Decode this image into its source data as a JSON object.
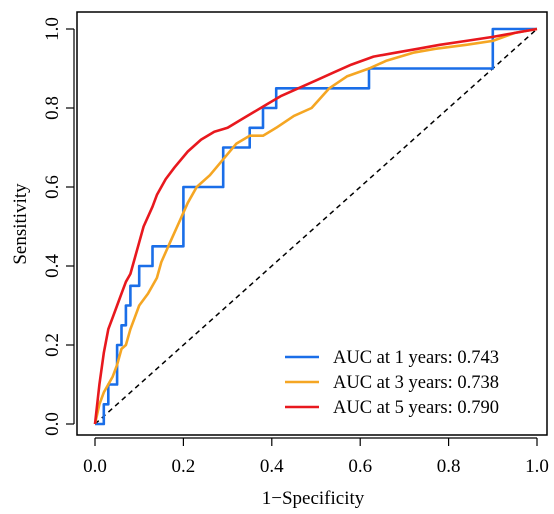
{
  "chart_data": {
    "type": "line",
    "title": "",
    "xlabel": "1−Specificity",
    "ylabel": "Sensitivity",
    "xlim": [
      0,
      1
    ],
    "ylim": [
      0,
      1
    ],
    "xticks": [
      "0.0",
      "0.2",
      "0.4",
      "0.6",
      "0.8",
      "1.0"
    ],
    "yticks": [
      "0.0",
      "0.2",
      "0.4",
      "0.6",
      "0.8",
      "1.0"
    ],
    "grid": false,
    "legend_position": "bottom-right",
    "reference_line": {
      "style": "dashed",
      "color": "#000000",
      "from": [
        0,
        0
      ],
      "to": [
        1,
        1
      ]
    },
    "series": [
      {
        "name": "AUC at 1 years: 0.743",
        "color": "#1a6ee8",
        "points": [
          [
            0,
            0
          ],
          [
            0.02,
            0
          ],
          [
            0.02,
            0.05
          ],
          [
            0.03,
            0.05
          ],
          [
            0.03,
            0.1
          ],
          [
            0.05,
            0.1
          ],
          [
            0.05,
            0.2
          ],
          [
            0.06,
            0.2
          ],
          [
            0.06,
            0.25
          ],
          [
            0.07,
            0.25
          ],
          [
            0.07,
            0.3
          ],
          [
            0.08,
            0.3
          ],
          [
            0.08,
            0.35
          ],
          [
            0.1,
            0.35
          ],
          [
            0.1,
            0.4
          ],
          [
            0.13,
            0.4
          ],
          [
            0.13,
            0.45
          ],
          [
            0.2,
            0.45
          ],
          [
            0.2,
            0.6
          ],
          [
            0.29,
            0.6
          ],
          [
            0.29,
            0.7
          ],
          [
            0.35,
            0.7
          ],
          [
            0.35,
            0.75
          ],
          [
            0.38,
            0.75
          ],
          [
            0.38,
            0.8
          ],
          [
            0.41,
            0.8
          ],
          [
            0.41,
            0.85
          ],
          [
            0.62,
            0.85
          ],
          [
            0.62,
            0.9
          ],
          [
            0.9,
            0.9
          ],
          [
            0.9,
            0.95
          ],
          [
            0.9,
            1.0
          ],
          [
            1.0,
            1.0
          ]
        ]
      },
      {
        "name": "AUC at 3 years: 0.738",
        "color": "#f5a623",
        "points": [
          [
            0,
            0
          ],
          [
            0.01,
            0.05
          ],
          [
            0.02,
            0.08
          ],
          [
            0.04,
            0.12
          ],
          [
            0.05,
            0.15
          ],
          [
            0.06,
            0.19
          ],
          [
            0.07,
            0.2
          ],
          [
            0.08,
            0.24
          ],
          [
            0.09,
            0.27
          ],
          [
            0.1,
            0.3
          ],
          [
            0.12,
            0.33
          ],
          [
            0.14,
            0.37
          ],
          [
            0.15,
            0.41
          ],
          [
            0.17,
            0.46
          ],
          [
            0.19,
            0.51
          ],
          [
            0.21,
            0.56
          ],
          [
            0.23,
            0.6
          ],
          [
            0.26,
            0.63
          ],
          [
            0.29,
            0.67
          ],
          [
            0.32,
            0.71
          ],
          [
            0.35,
            0.73
          ],
          [
            0.38,
            0.73
          ],
          [
            0.41,
            0.75
          ],
          [
            0.45,
            0.78
          ],
          [
            0.49,
            0.8
          ],
          [
            0.53,
            0.85
          ],
          [
            0.57,
            0.88
          ],
          [
            0.62,
            0.9
          ],
          [
            0.66,
            0.92
          ],
          [
            0.72,
            0.94
          ],
          [
            0.77,
            0.95
          ],
          [
            0.84,
            0.96
          ],
          [
            0.9,
            0.97
          ],
          [
            0.95,
            0.99
          ],
          [
            1.0,
            1.0
          ]
        ]
      },
      {
        "name": "AUC at 5 years: 0.790",
        "color": "#e8181e",
        "points": [
          [
            0,
            0
          ],
          [
            0.01,
            0.1
          ],
          [
            0.02,
            0.18
          ],
          [
            0.03,
            0.24
          ],
          [
            0.04,
            0.27
          ],
          [
            0.05,
            0.3
          ],
          [
            0.06,
            0.33
          ],
          [
            0.07,
            0.36
          ],
          [
            0.08,
            0.38
          ],
          [
            0.09,
            0.42
          ],
          [
            0.1,
            0.46
          ],
          [
            0.11,
            0.5
          ],
          [
            0.13,
            0.55
          ],
          [
            0.14,
            0.58
          ],
          [
            0.16,
            0.62
          ],
          [
            0.18,
            0.65
          ],
          [
            0.21,
            0.69
          ],
          [
            0.24,
            0.72
          ],
          [
            0.27,
            0.74
          ],
          [
            0.3,
            0.75
          ],
          [
            0.33,
            0.77
          ],
          [
            0.36,
            0.79
          ],
          [
            0.39,
            0.81
          ],
          [
            0.42,
            0.83
          ],
          [
            0.46,
            0.85
          ],
          [
            0.5,
            0.87
          ],
          [
            0.54,
            0.89
          ],
          [
            0.58,
            0.91
          ],
          [
            0.63,
            0.93
          ],
          [
            0.68,
            0.94
          ],
          [
            0.73,
            0.95
          ],
          [
            0.78,
            0.96
          ],
          [
            0.84,
            0.97
          ],
          [
            0.9,
            0.98
          ],
          [
            0.95,
            0.99
          ],
          [
            1.0,
            1.0
          ]
        ]
      }
    ]
  }
}
